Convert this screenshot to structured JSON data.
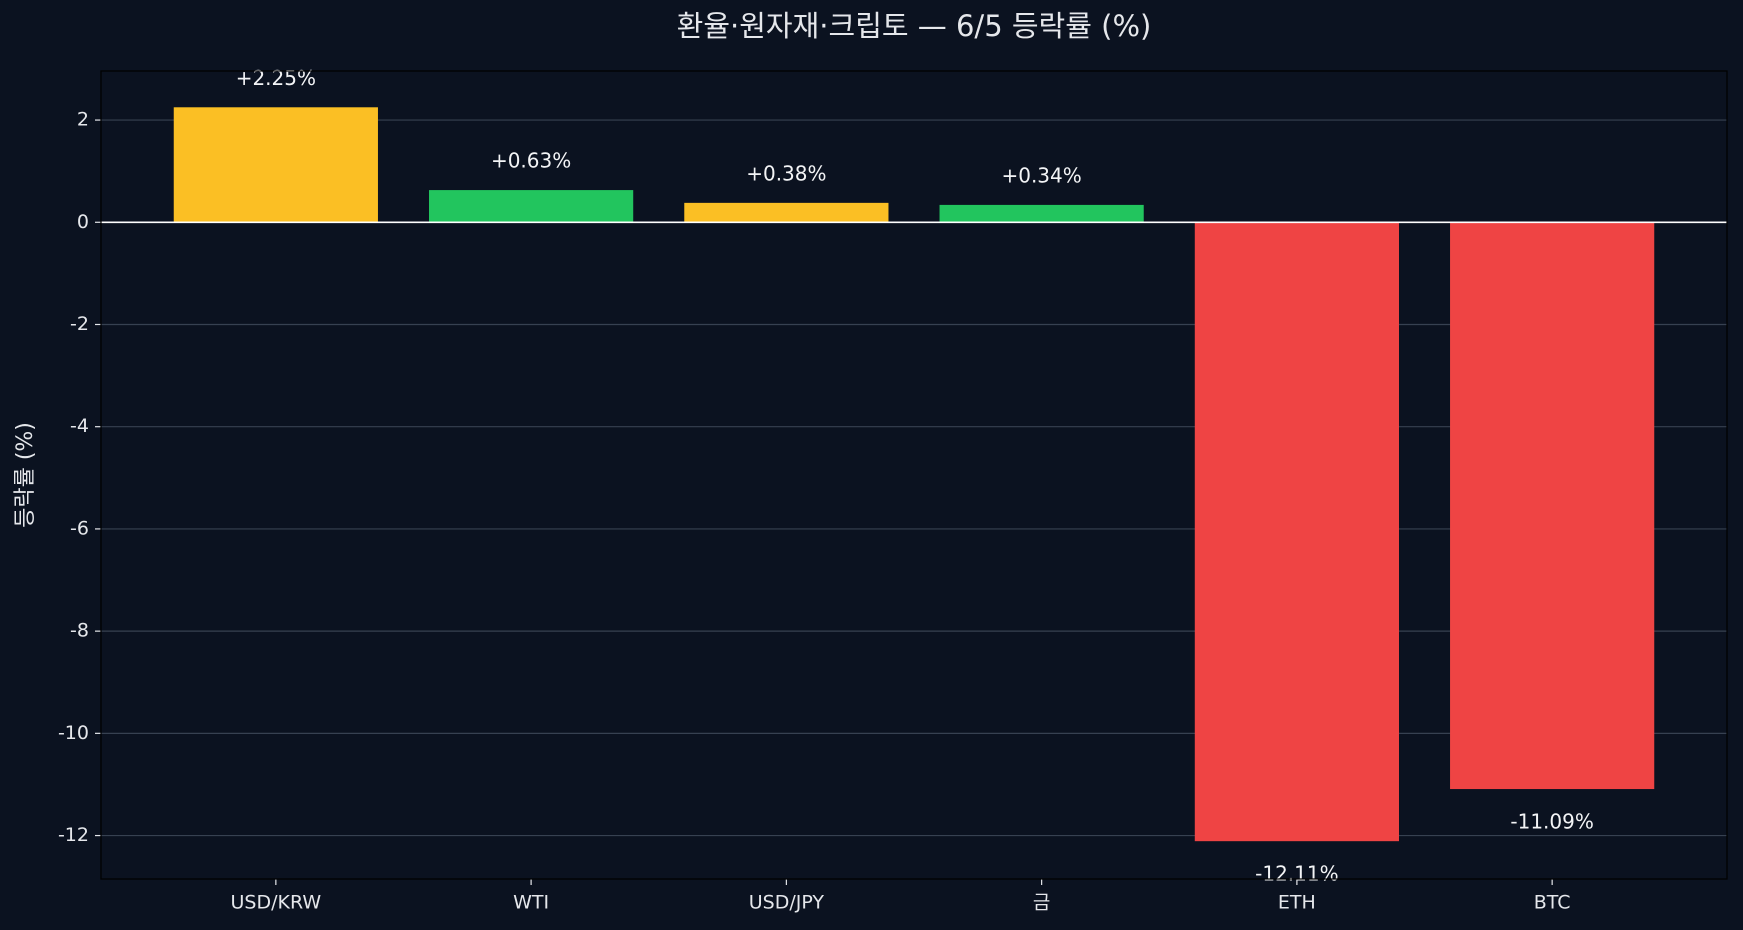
{
  "chart_data": {
    "type": "bar",
    "title": "환율·원자재·크립토 — 6/5 등락률 (%)",
    "y_label": "등락률 (%)",
    "categories": [
      "USD/KRW",
      "WTI",
      "USD/JPY",
      "금",
      "ETH",
      "BTC"
    ],
    "values": [
      2.25,
      0.63,
      0.38,
      0.34,
      -12.11,
      -11.09
    ],
    "value_labels": [
      "+2.25%",
      "+0.63%",
      "+0.38%",
      "+0.34%",
      "-12.11%",
      "-11.09%"
    ],
    "colors": [
      "#fbbf24",
      "#22c55e",
      "#fbbf24",
      "#22c55e",
      "#ef4444",
      "#ef4444"
    ],
    "ylim": [
      -12.85,
      2.96
    ],
    "yticks": [
      -12,
      -10,
      -8,
      -6,
      -4,
      -2,
      0,
      2
    ],
    "grid": true
  }
}
